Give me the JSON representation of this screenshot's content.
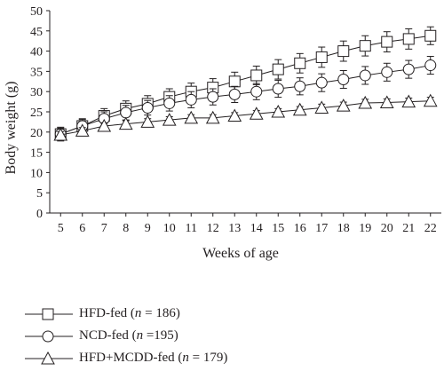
{
  "chart_data": {
    "type": "line",
    "xlabel": "Weeks of age",
    "ylabel": "Body weight (g)",
    "x": [
      5,
      6,
      7,
      8,
      9,
      10,
      11,
      12,
      13,
      14,
      15,
      16,
      17,
      18,
      19,
      20,
      21,
      22
    ],
    "xlim": [
      4.5,
      22.5
    ],
    "ylim": [
      0,
      50
    ],
    "yticks": [
      0,
      5,
      10,
      15,
      20,
      25,
      30,
      35,
      40,
      45,
      50
    ],
    "grid": false,
    "legend_position": "bottom",
    "series": [
      {
        "name": "HFD-fed",
        "n_label": "n",
        "n_text": " = 186)",
        "marker": "square",
        "values": [
          19.5,
          21.5,
          24.0,
          25.8,
          27.0,
          28.7,
          30.0,
          31.0,
          32.5,
          34.0,
          35.5,
          37.0,
          38.5,
          40.0,
          41.3,
          42.3,
          43.0,
          43.8
        ],
        "error": [
          1.7,
          1.8,
          1.8,
          1.9,
          2.0,
          2.0,
          2.1,
          2.2,
          2.3,
          2.3,
          2.4,
          2.4,
          2.5,
          2.5,
          2.5,
          2.5,
          2.5,
          2.2
        ]
      },
      {
        "name": "NCD-fed",
        "n_label": "n",
        "n_text": " =195)",
        "marker": "circle",
        "values": [
          19.5,
          21.5,
          23.3,
          24.8,
          26.0,
          27.1,
          28.0,
          28.7,
          29.3,
          30.0,
          30.7,
          31.3,
          32.2,
          33.0,
          34.0,
          34.8,
          35.5,
          36.5
        ],
        "error": [
          1.5,
          1.6,
          1.7,
          1.8,
          1.8,
          1.9,
          2.0,
          2.0,
          2.0,
          2.0,
          2.1,
          2.1,
          2.2,
          2.2,
          2.2,
          2.2,
          2.2,
          2.2
        ]
      },
      {
        "name": "HFD+MCDD-fed",
        "n_label": "n",
        "n_text": " = 179)",
        "marker": "triangle",
        "values": [
          19.3,
          20.3,
          21.5,
          22.0,
          22.5,
          23.0,
          23.5,
          23.5,
          24.0,
          24.5,
          25.0,
          25.5,
          26.0,
          26.5,
          27.2,
          27.3,
          27.5,
          27.7
        ],
        "error": [
          0.8,
          0.8,
          0.8,
          0.8,
          0.8,
          0.8,
          0.8,
          0.8,
          0.8,
          0.8,
          0.8,
          0.8,
          0.9,
          0.9,
          0.9,
          0.9,
          0.9,
          0.9
        ]
      }
    ]
  }
}
